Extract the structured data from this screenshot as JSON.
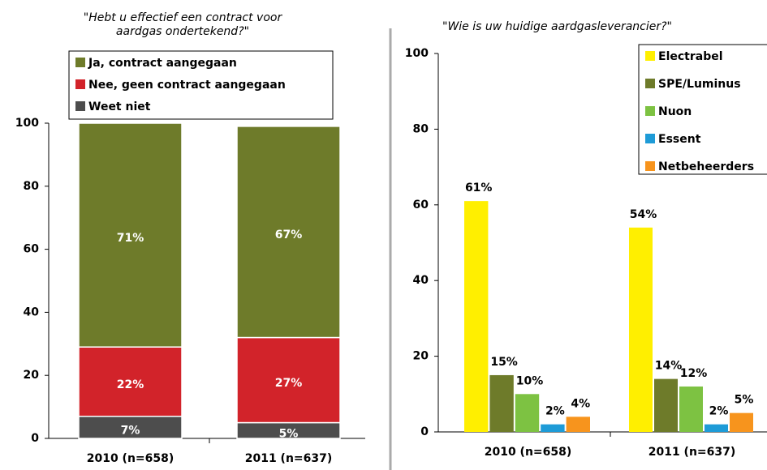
{
  "chart_data": [
    {
      "type": "bar",
      "stacked": true,
      "title": "\"Hebt u effectief een contract voor aardgas ondertekend?\"",
      "categories": [
        "2010 (n=658)",
        "2011 (n=637)"
      ],
      "series": [
        {
          "name": "Ja, contract aangegaan",
          "color": "#6e7b2a",
          "values": [
            71,
            67
          ],
          "value_labels": [
            "71%",
            "67%"
          ]
        },
        {
          "name": "Nee, geen contract aangegaan",
          "color": "#d2232a",
          "values": [
            22,
            27
          ],
          "value_labels": [
            "22%",
            "27%"
          ]
        },
        {
          "name": "Weet niet",
          "color": "#4d4d4d",
          "values": [
            7,
            5
          ],
          "value_labels": [
            "7%",
            "5%"
          ]
        }
      ],
      "ylim": [
        0,
        100
      ],
      "yticks": [
        0,
        20,
        40,
        60,
        80,
        100
      ],
      "legend": "top"
    },
    {
      "type": "bar",
      "stacked": false,
      "title": "\"Wie is uw huidige aardgasleverancier?\"",
      "categories": [
        "2010 (n=658)",
        "2011 (n=637)"
      ],
      "series": [
        {
          "name": "Electrabel",
          "color": "#ffef00",
          "values": [
            61,
            54
          ],
          "value_labels": [
            "61%",
            "54%"
          ]
        },
        {
          "name": "SPE/Luminus",
          "color": "#6e7b2a",
          "values": [
            15,
            14
          ],
          "value_labels": [
            "15%",
            "14%"
          ]
        },
        {
          "name": "Nuon",
          "color": "#7dc242",
          "values": [
            10,
            12
          ],
          "value_labels": [
            "10%",
            "12%"
          ]
        },
        {
          "name": "Essent",
          "color": "#1e9bd7",
          "values": [
            2,
            2
          ],
          "value_labels": [
            "2%",
            "2%"
          ]
        },
        {
          "name": "Netbeheerders",
          "color": "#f7941d",
          "values": [
            4,
            5
          ],
          "value_labels": [
            "4%",
            "5%"
          ]
        }
      ],
      "ylim": [
        0,
        100
      ],
      "yticks": [
        0,
        20,
        40,
        60,
        80,
        100
      ],
      "legend": "top-right"
    }
  ]
}
